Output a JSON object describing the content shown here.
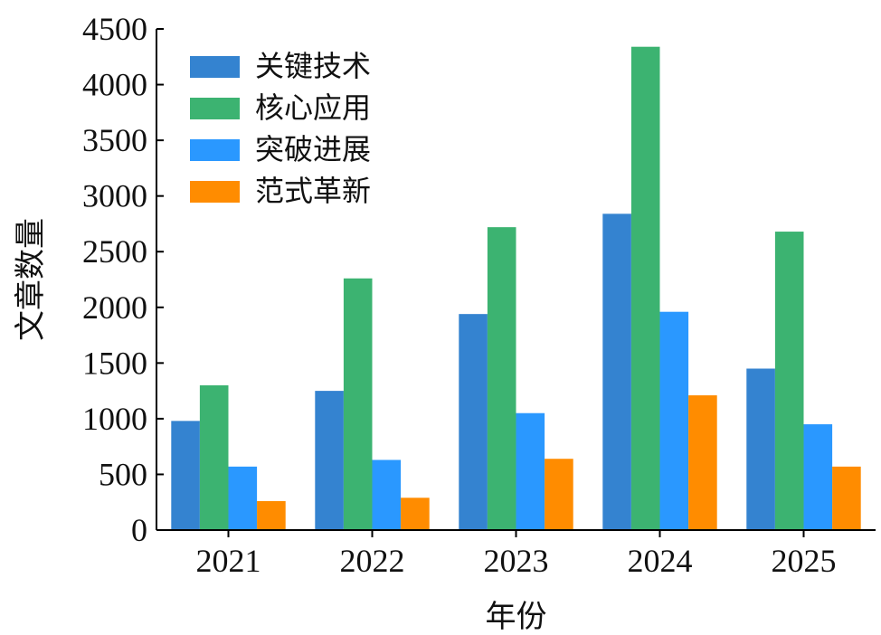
{
  "chart_data": {
    "type": "bar",
    "title": "",
    "xlabel": "年份",
    "ylabel": "文章数量",
    "categories": [
      "2021",
      "2022",
      "2023",
      "2024",
      "2025"
    ],
    "ylim": [
      0,
      4500
    ],
    "yticks": [
      0,
      500,
      1000,
      1500,
      2000,
      2500,
      3000,
      3500,
      4000,
      4500
    ],
    "grid": false,
    "legend_position": "top-left",
    "series": [
      {
        "name": "关键技术",
        "color": "#3483d0",
        "values": [
          980,
          1250,
          1940,
          2840,
          1450
        ]
      },
      {
        "name": "核心应用",
        "color": "#3cb371",
        "values": [
          1300,
          2260,
          2720,
          4340,
          2680
        ]
      },
      {
        "name": "突破进展",
        "color": "#2a98ff",
        "values": [
          570,
          630,
          1050,
          1960,
          950
        ]
      },
      {
        "name": "范式革新",
        "color": "#ff8c00",
        "values": [
          260,
          290,
          640,
          1210,
          570
        ]
      }
    ]
  }
}
